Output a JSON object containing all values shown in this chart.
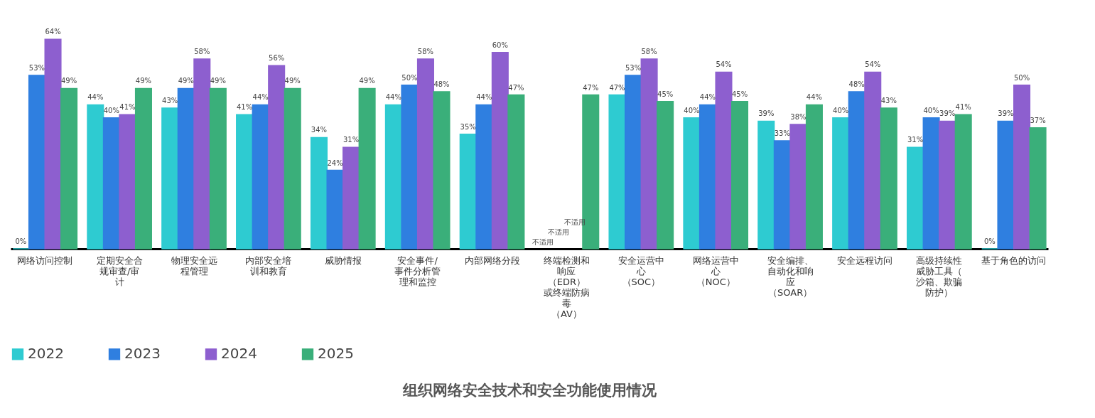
{
  "chart_data": {
    "type": "bar",
    "title": "组织网络安全技术和安全功能使用情况",
    "categories": [
      "网络访问控制",
      "定期安全合规审查/审计",
      "物理安全远程管理",
      "内部安全培训和教育",
      "威胁情报",
      "安全事件/事件分析管理和监控",
      "内部网络分段",
      "终端检测和响应（EDR）或终端防病毒（AV）",
      "安全运营中心（SOC）",
      "网络运营中心（NOC）",
      "安全编排、自动化和响应（SOAR）",
      "安全远程访问",
      "高级持续性威胁工具（沙箱、欺骗防护）",
      "基于角色的访问"
    ],
    "series": [
      {
        "name": "2022",
        "color": "#2ecbd1",
        "values": [
          0,
          44,
          43,
          41,
          34,
          44,
          35,
          null,
          47,
          40,
          39,
          40,
          31,
          0
        ],
        "value_labels": [
          "0%",
          "44%",
          "43%",
          "41%",
          "34%",
          "44%",
          "35%",
          "不适用",
          "47%",
          "40%",
          "39%",
          "40%",
          "31%",
          "0%"
        ]
      },
      {
        "name": "2023",
        "color": "#2f7fe0",
        "values": [
          53,
          40,
          49,
          44,
          24,
          50,
          44,
          null,
          53,
          44,
          33,
          48,
          40,
          39
        ],
        "value_labels": [
          "53%",
          "40%",
          "49%",
          "44%",
          "24%",
          "50%",
          "44%",
          "不适用",
          "53%",
          "44%",
          "33%",
          "48%",
          "40%",
          "39%"
        ]
      },
      {
        "name": "2024",
        "color": "#8d5fcf",
        "values": [
          64,
          41,
          58,
          56,
          31,
          58,
          60,
          null,
          58,
          54,
          38,
          54,
          39,
          50
        ],
        "value_labels": [
          "64%",
          "41%",
          "58%",
          "56%",
          "31%",
          "58%",
          "60%",
          "不适用",
          "58%",
          "54%",
          "38%",
          "54%",
          "39%",
          "50%"
        ]
      },
      {
        "name": "2025",
        "color": "#3aaf7a",
        "values": [
          49,
          49,
          49,
          49,
          49,
          48,
          47,
          47,
          45,
          45,
          44,
          43,
          41,
          37
        ],
        "value_labels": [
          "49%",
          "49%",
          "49%",
          "49%",
          "49%",
          "48%",
          "47%",
          "47%",
          "45%",
          "45%",
          "44%",
          "43%",
          "41%",
          "37%"
        ]
      }
    ],
    "legend": "bottom",
    "grid": false
  }
}
